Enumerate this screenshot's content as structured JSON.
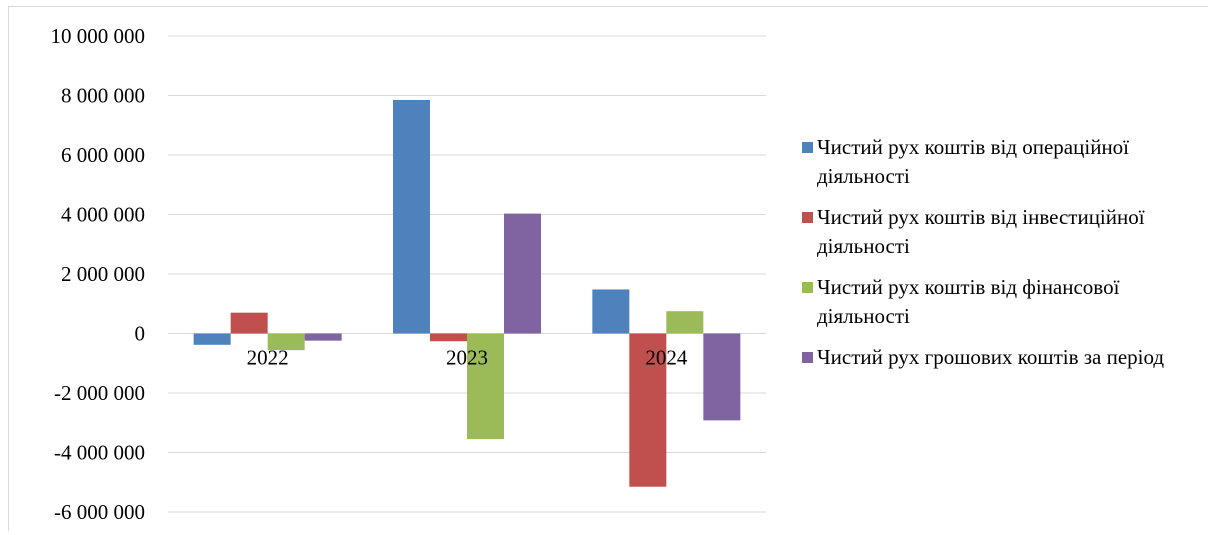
{
  "chart_data": {
    "type": "bar",
    "title": "",
    "xlabel": "",
    "ylabel": "",
    "categories": [
      "2022",
      "2023",
      "2024"
    ],
    "ylim": [
      -6000000,
      10000000
    ],
    "y_ticks": [
      10000000,
      8000000,
      6000000,
      4000000,
      2000000,
      0,
      -2000000,
      -4000000,
      -6000000
    ],
    "y_tick_labels": [
      "10 000 000",
      "8 000 000",
      "6 000 000",
      "4 000 000",
      "2 000 000",
      "0",
      "-2 000 000",
      "-4 000 000",
      "-6 000 000"
    ],
    "grid": true,
    "legend_position": "right",
    "series": [
      {
        "name": "Чистий рух коштів від операційної діяльності",
        "color": "#4f81bd",
        "values": [
          -380000,
          7850000,
          1480000
        ]
      },
      {
        "name": "Чистий рух коштів від інвестиційної діяльності",
        "color": "#c0504d",
        "values": [
          700000,
          -260000,
          -5150000
        ]
      },
      {
        "name": "Чистий рух коштів від фінансової діяльності",
        "color": "#9bbb59",
        "values": [
          -560000,
          -3550000,
          750000
        ]
      },
      {
        "name": "Чистий рух грошових коштів за період",
        "color": "#8064a2",
        "values": [
          -240000,
          4030000,
          -2920000
        ]
      }
    ]
  }
}
